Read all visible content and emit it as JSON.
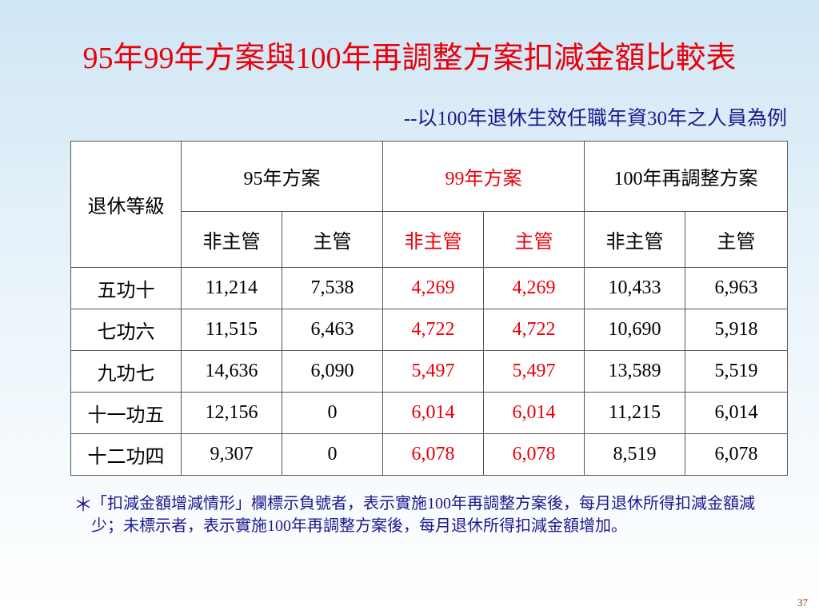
{
  "title": "95年99年方案與100年再調整方案扣減金額比較表",
  "subtitle": "--以100年退休生效任職年資30年之人員為例",
  "table": {
    "corner_header": "退休等級",
    "groups": [
      "95年方案",
      "99年方案",
      "100年再調整方案"
    ],
    "subheaders": [
      "非主管",
      "主管",
      "非主管",
      "主管",
      "非主管",
      "主管"
    ],
    "rows": [
      {
        "grade": "五功十",
        "values": [
          "11,214",
          "7,538",
          "4,269",
          "4,269",
          "10,433",
          "6,963"
        ]
      },
      {
        "grade": "七功六",
        "values": [
          "11,515",
          "6,463",
          "4,722",
          "4,722",
          "10,690",
          "5,918"
        ]
      },
      {
        "grade": "九功七",
        "values": [
          "14,636",
          "6,090",
          "5,497",
          "5,497",
          "13,589",
          "5,519"
        ]
      },
      {
        "grade": "十一功五",
        "values": [
          "12,156",
          "0",
          "6,014",
          "6,014",
          "11,215",
          "6,014"
        ]
      },
      {
        "grade": "十二功四",
        "values": [
          "9,307",
          "0",
          "6,078",
          "6,078",
          "8,519",
          "6,078"
        ]
      }
    ]
  },
  "note": {
    "marker": "＊",
    "text": "「扣減金額增減情形」欄標示負號者，表示實施100年再調整方案後，每月退休所得扣減金額減少；未標示者，表示實施100年再調整方案後，每月退休所得扣減金額增加。"
  },
  "page_number": "37",
  "colors": {
    "highlight": "#e8000b",
    "note_text": "#1a1a8c"
  }
}
